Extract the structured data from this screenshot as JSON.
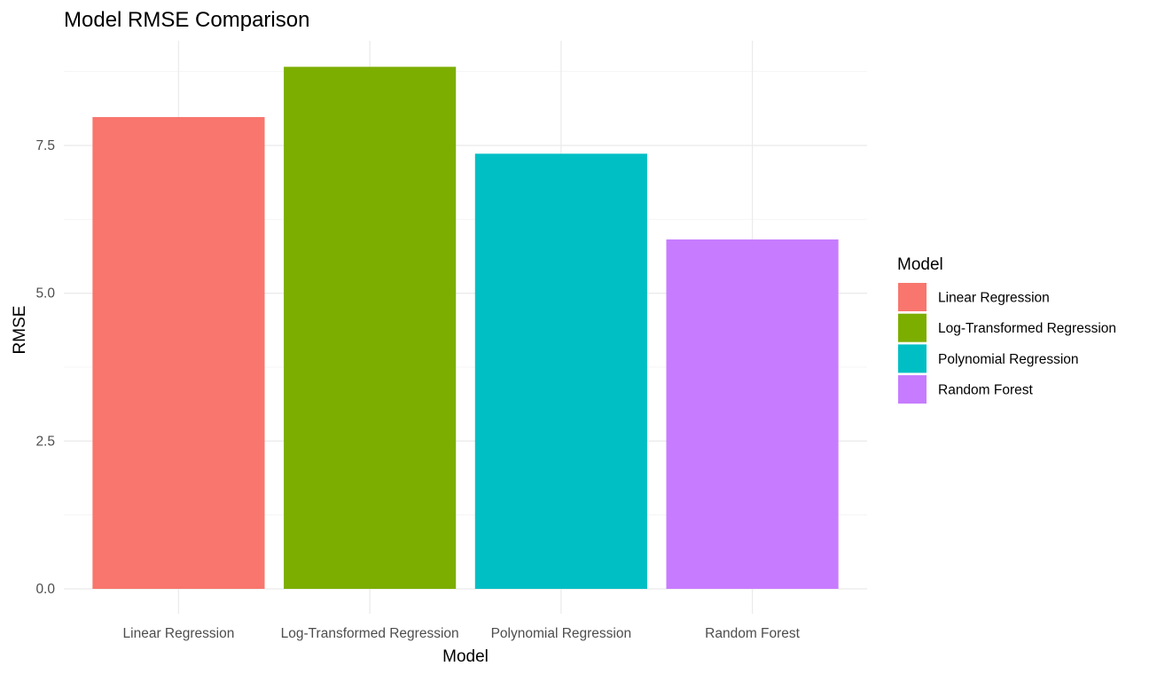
{
  "chart_data": {
    "type": "bar",
    "title": "Model RMSE Comparison",
    "xlabel": "Model",
    "ylabel": "RMSE",
    "categories": [
      "Linear Regression",
      "Log-Transformed Regression",
      "Polynomial Regression",
      "Random Forest"
    ],
    "values": [
      7.98,
      8.83,
      7.36,
      5.91
    ],
    "colors": [
      "#F8766D",
      "#7CAE00",
      "#00BFC4",
      "#C77CFF"
    ],
    "ylim": [
      0,
      9.3
    ],
    "yticks": [
      0,
      2.5,
      5,
      7.5
    ],
    "ytick_labels": [
      "0.0",
      "2.5",
      "5.0",
      "7.5"
    ],
    "grid": true,
    "legend": {
      "title": "Model",
      "placement": "right",
      "entries": [
        "Linear Regression",
        "Log-Transformed Regression",
        "Polynomial Regression",
        "Random Forest"
      ]
    }
  }
}
